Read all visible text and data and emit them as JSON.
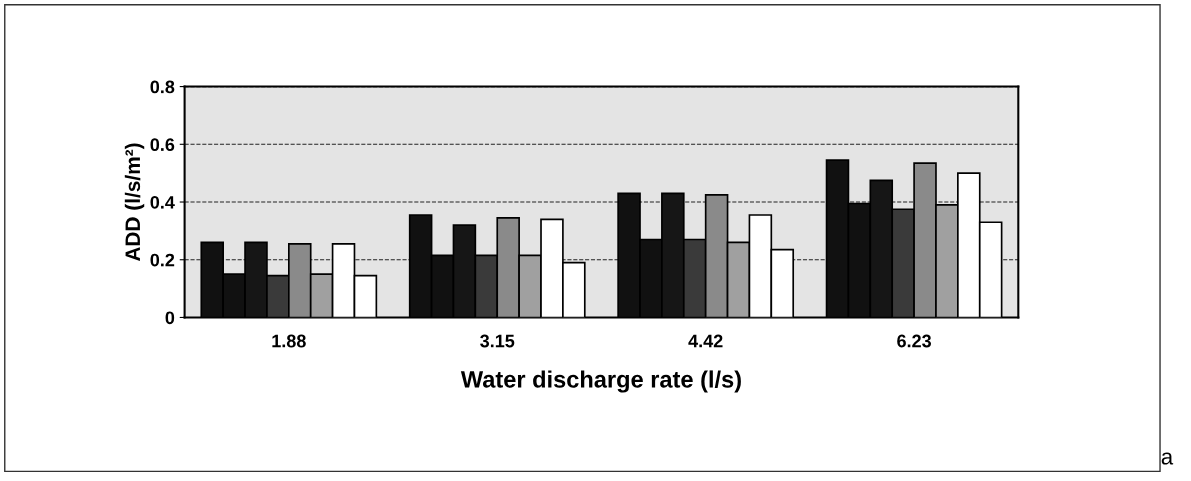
{
  "chart_data": {
    "type": "bar",
    "xlabel": "Water discharge rate (l/s)",
    "ylabel": "ADD (l/s/m²)",
    "categories": [
      "1.88",
      "3.15",
      "4.42",
      "6.23"
    ],
    "series": [
      {
        "color": "#111111",
        "values": [
          0.26,
          0.355,
          0.43,
          0.545
        ]
      },
      {
        "color": "#111111",
        "values": [
          0.15,
          0.215,
          0.27,
          0.395
        ]
      },
      {
        "color": "#161616",
        "values": [
          0.26,
          0.32,
          0.43,
          0.475
        ]
      },
      {
        "color": "#3a3a3a",
        "values": [
          0.145,
          0.215,
          0.27,
          0.375
        ]
      },
      {
        "color": "#8a8a8a",
        "values": [
          0.255,
          0.345,
          0.425,
          0.535
        ]
      },
      {
        "color": "#a0a0a0",
        "values": [
          0.15,
          0.215,
          0.26,
          0.39
        ]
      },
      {
        "color": "#ffffff",
        "values": [
          0.255,
          0.34,
          0.355,
          0.5
        ]
      },
      {
        "color": "#ffffff",
        "values": [
          0.145,
          0.19,
          0.235,
          0.33
        ]
      }
    ],
    "ylim": [
      0,
      0.8
    ],
    "yticks": [
      0,
      0.2,
      0.4,
      0.6,
      0.8
    ],
    "grid": "y",
    "annotations": [
      "a"
    ]
  }
}
